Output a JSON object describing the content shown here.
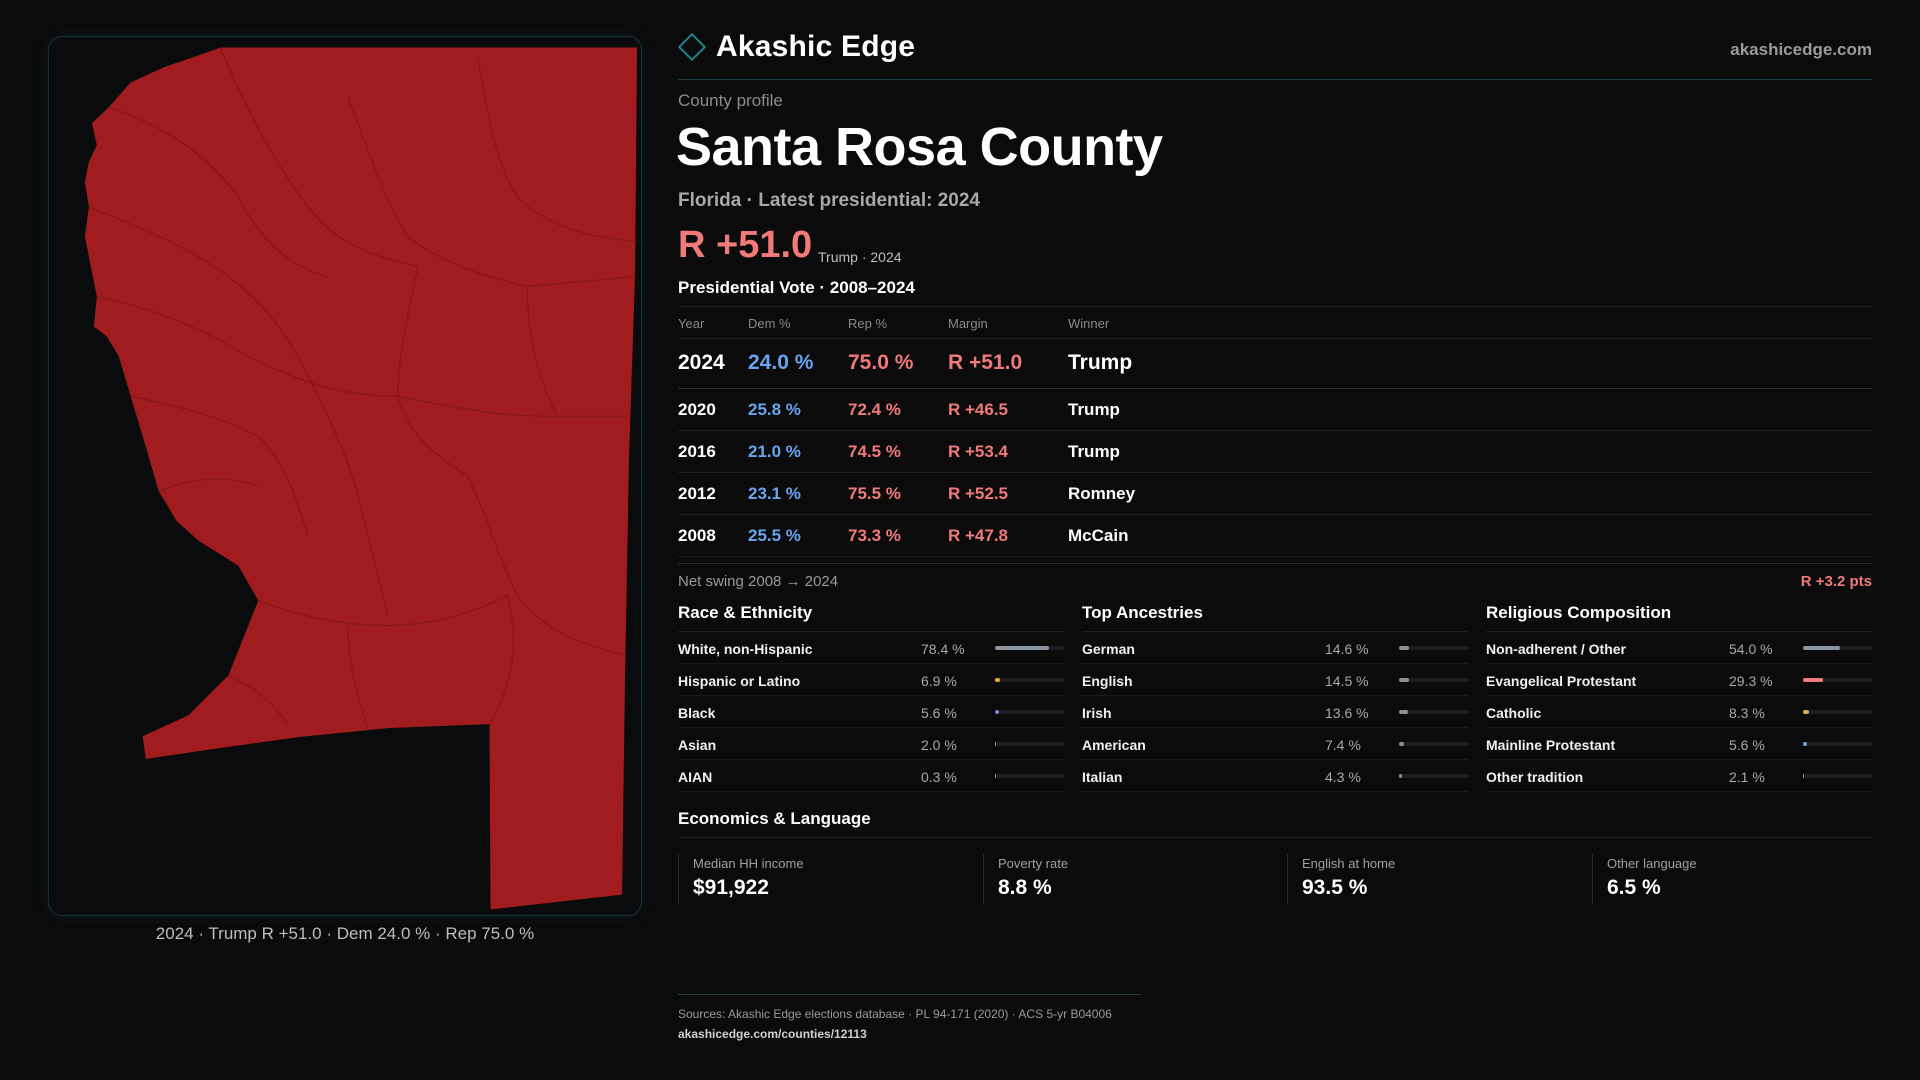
{
  "brand": {
    "name": "Akashic Edge",
    "site": "akashicedge.com",
    "accent": "#1f7f8c"
  },
  "profile": {
    "eyebrow": "County profile",
    "county": "Santa Rosa County",
    "subtitle": "Florida · Latest presidential: 2024",
    "margin": "R +51.0",
    "margin_note": "Trump · 2024"
  },
  "map": {
    "fill_color": "#a11c1f",
    "caption": "2024 · Trump R +51.0 · Dem 24.0 % · Rep 75.0 %"
  },
  "vote": {
    "title": "Presidential Vote · 2008–2024",
    "headers": {
      "year": "Year",
      "dem": "Dem %",
      "rep": "Rep %",
      "margin": "Margin",
      "winner": "Winner"
    },
    "rows": [
      {
        "year": "2024",
        "dem": "24.0 %",
        "rep": "75.0 %",
        "margin": "R +51.0",
        "winner": "Trump"
      },
      {
        "year": "2020",
        "dem": "25.8 %",
        "rep": "72.4 %",
        "margin": "R +46.5",
        "winner": "Trump"
      },
      {
        "year": "2016",
        "dem": "21.0 %",
        "rep": "74.5 %",
        "margin": "R +53.4",
        "winner": "Trump"
      },
      {
        "year": "2012",
        "dem": "23.1 %",
        "rep": "75.5 %",
        "margin": "R +52.5",
        "winner": "Romney"
      },
      {
        "year": "2008",
        "dem": "25.5 %",
        "rep": "73.3 %",
        "margin": "R +47.8",
        "winner": "McCain"
      }
    ],
    "swing_label": "Net swing 2008 → 2024",
    "swing_value": "R +3.2 pts",
    "colors": {
      "dem": "#6aa3f0",
      "rep": "#f07a7a"
    }
  },
  "race": {
    "title": "Race & Ethnicity",
    "items": [
      {
        "label": "White, non-Hispanic",
        "pct": "78.4 %",
        "value": 78.4,
        "color": "#8a929c"
      },
      {
        "label": "Hispanic or Latino",
        "pct": "6.9 %",
        "value": 6.9,
        "color": "#e0a93a"
      },
      {
        "label": "Black",
        "pct": "5.6 %",
        "value": 5.6,
        "color": "#8b7be0"
      },
      {
        "label": "Asian",
        "pct": "2.0 %",
        "value": 2.0,
        "color": "#3fb8a8"
      },
      {
        "label": "AIAN",
        "pct": "0.3 %",
        "value": 0.3,
        "color": "#e07a4a"
      }
    ]
  },
  "ancestry": {
    "title": "Top Ancestries",
    "items": [
      {
        "label": "German",
        "pct": "14.6 %",
        "value": 14.6,
        "color": "#8a929c"
      },
      {
        "label": "English",
        "pct": "14.5 %",
        "value": 14.5,
        "color": "#8a929c"
      },
      {
        "label": "Irish",
        "pct": "13.6 %",
        "value": 13.6,
        "color": "#8a929c"
      },
      {
        "label": "American",
        "pct": "7.4 %",
        "value": 7.4,
        "color": "#8a929c"
      },
      {
        "label": "Italian",
        "pct": "4.3 %",
        "value": 4.3,
        "color": "#8a929c"
      }
    ]
  },
  "religion": {
    "title": "Religious Composition",
    "items": [
      {
        "label": "Non-adherent / Other",
        "pct": "54.0 %",
        "value": 54.0,
        "color": "#8a929c"
      },
      {
        "label": "Evangelical Protestant",
        "pct": "29.3 %",
        "value": 29.3,
        "color": "#f07a7a"
      },
      {
        "label": "Catholic",
        "pct": "8.3 %",
        "value": 8.3,
        "color": "#e0a93a"
      },
      {
        "label": "Mainline Protestant",
        "pct": "5.6 %",
        "value": 5.6,
        "color": "#6aa3f0"
      },
      {
        "label": "Other tradition",
        "pct": "2.1 %",
        "value": 2.1,
        "color": "#8a929c"
      }
    ]
  },
  "economics": {
    "title": "Economics & Language",
    "items": [
      {
        "label": "Median HH income",
        "value": "$91,922"
      },
      {
        "label": "Poverty rate",
        "value": "8.8 %"
      },
      {
        "label": "English at home",
        "value": "93.5 %"
      },
      {
        "label": "Other language",
        "value": "6.5 %"
      }
    ]
  },
  "footer": {
    "sources": "Sources: Akashic Edge elections database · PL 94-171 (2020) · ACS 5-yr B04006",
    "url": "akashicedge.com/counties/12113"
  }
}
